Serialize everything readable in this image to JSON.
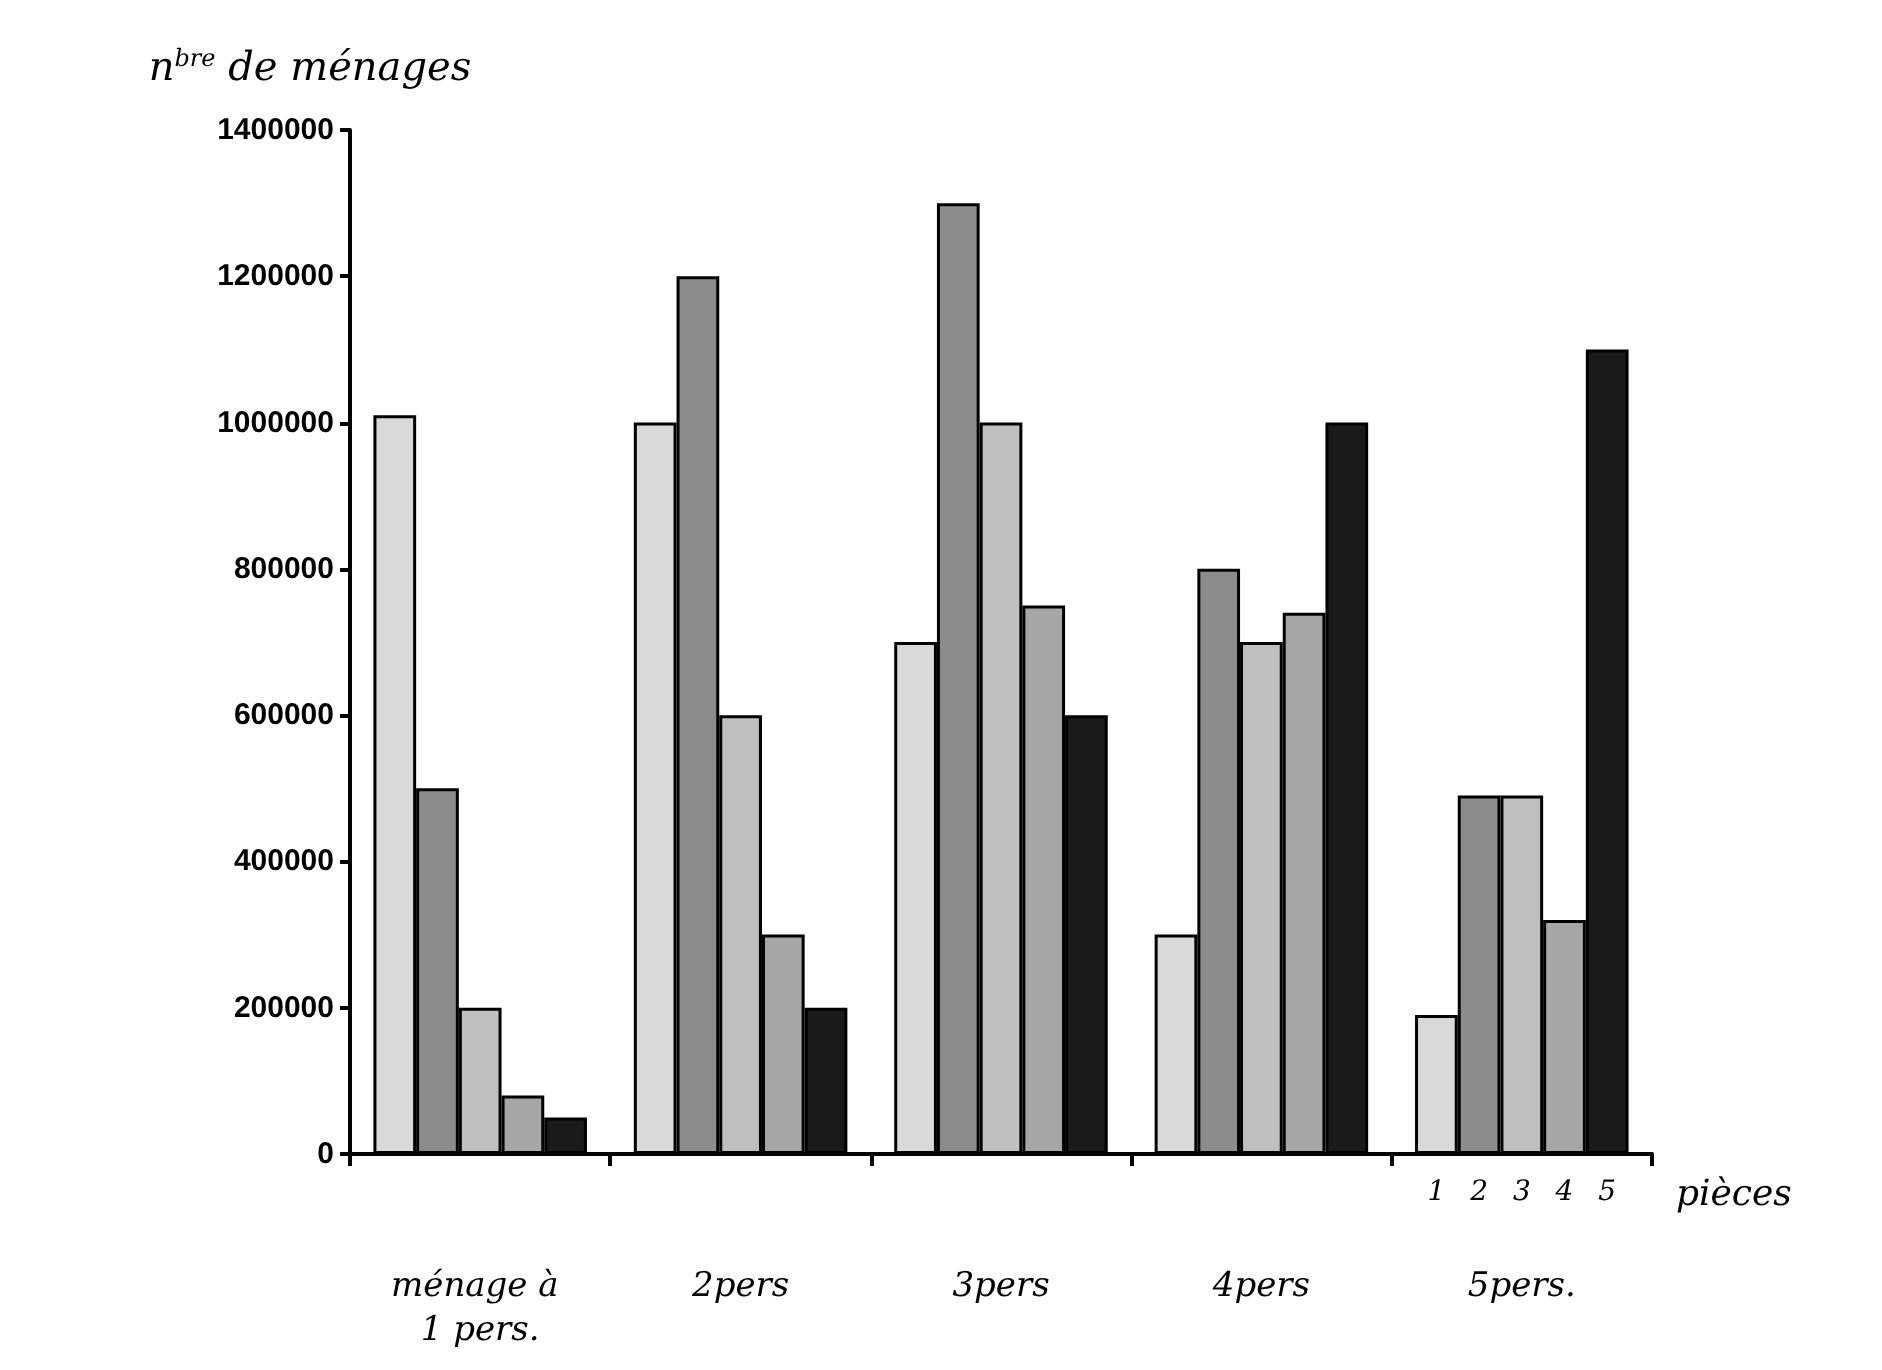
{
  "chart_data": {
    "type": "bar",
    "ylabel": "n$^{bre}$ de ménages",
    "xlabel": "pièces",
    "categories": [
      "ménage à 1 pers.",
      "2pers",
      "3pers",
      "4pers",
      "5pers."
    ],
    "series": [
      {
        "name": "1",
        "color": "#d9d9d9",
        "values": [
          1010000,
          1000000,
          700000,
          300000,
          190000
        ]
      },
      {
        "name": "2",
        "color": "#8c8c8c",
        "values": [
          500000,
          1200000,
          1300000,
          800000,
          490000
        ]
      },
      {
        "name": "3",
        "color": "#bfbfbf",
        "values": [
          200000,
          600000,
          1000000,
          700000,
          490000
        ]
      },
      {
        "name": "4",
        "color": "#a6a6a6",
        "values": [
          80000,
          300000,
          750000,
          740000,
          320000
        ]
      },
      {
        "name": "5",
        "color": "#1a1a1a",
        "values": [
          50000,
          200000,
          600000,
          1000000,
          1100000
        ]
      }
    ],
    "ylim": [
      0,
      1400000
    ],
    "yticks": [
      0,
      200000,
      400000,
      600000,
      800000,
      1000000,
      1200000,
      1400000
    ],
    "grid": false
  }
}
